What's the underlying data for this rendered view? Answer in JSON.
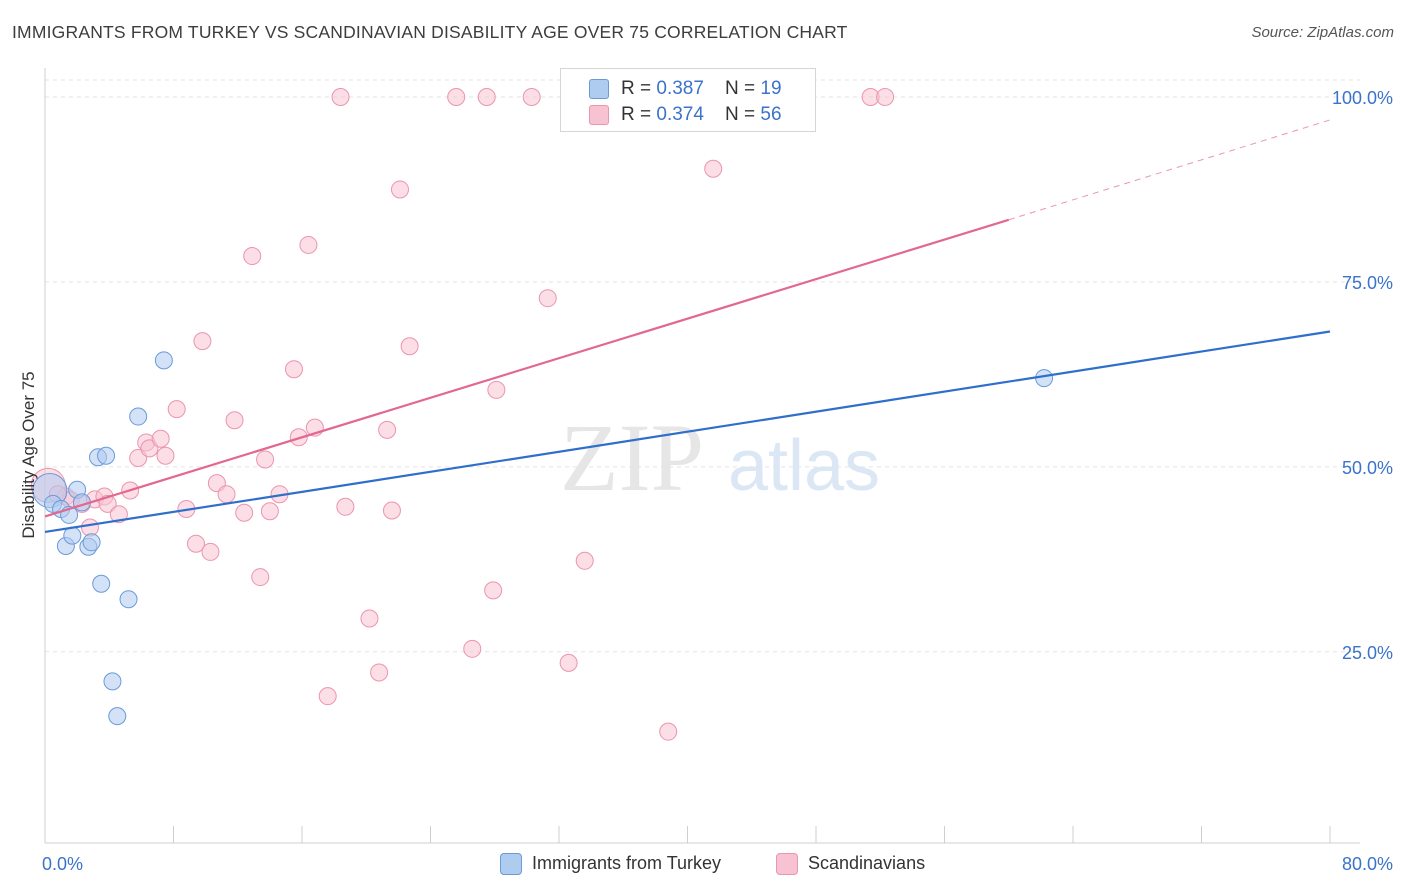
{
  "header": {
    "title": "IMMIGRANTS FROM TURKEY VS SCANDINAVIAN DISABILITY AGE OVER 75 CORRELATION CHART",
    "source": "Source: ZipAtlas.com"
  },
  "watermark": {
    "zip": "ZIP",
    "atlas": "atlas"
  },
  "legend": {
    "rows": [
      {
        "r_label": "R = ",
        "r_value": "0.387",
        "n_label": "N = ",
        "n_value": "19"
      },
      {
        "r_label": "R = ",
        "r_value": "0.374",
        "n_label": "N = ",
        "n_value": "56"
      }
    ]
  },
  "colors": {
    "blue_fill": "#aecbf0",
    "blue_stroke": "#6a9bd8",
    "blue_line": "#2f6fcc",
    "pink_fill": "#f7c2d2",
    "pink_stroke": "#ec94b0",
    "pink_line": "#e2688f",
    "axis_label": "#3a73c9"
  },
  "chart_data": {
    "type": "scatter",
    "title": "IMMIGRANTS FROM TURKEY VS SCANDINAVIAN DISABILITY AGE OVER 75 CORRELATION CHART",
    "xlabel": "",
    "ylabel": "Disability Age Over 75",
    "xlim": [
      0,
      80
    ],
    "ylim": [
      0,
      105
    ],
    "x_tick_labels": [
      "0.0%",
      "80.0%"
    ],
    "y_ticks": [
      25,
      50,
      75,
      100
    ],
    "y_tick_labels": [
      "25.0%",
      "50.0%",
      "75.0%",
      "100.0%"
    ],
    "series": [
      {
        "name": "Immigrants from Turkey",
        "points": [
          [
            0.3,
            46.8
          ],
          [
            0.5,
            45.0
          ],
          [
            1.0,
            44.3
          ],
          [
            1.3,
            39.3
          ],
          [
            1.5,
            43.5
          ],
          [
            1.7,
            40.7
          ],
          [
            2.0,
            46.9
          ],
          [
            2.3,
            45.2
          ],
          [
            2.7,
            39.2
          ],
          [
            2.9,
            39.8
          ],
          [
            3.3,
            51.3
          ],
          [
            3.5,
            34.2
          ],
          [
            3.8,
            51.5
          ],
          [
            4.2,
            21.0
          ],
          [
            4.5,
            16.3
          ],
          [
            5.2,
            32.1
          ],
          [
            5.8,
            56.8
          ],
          [
            7.4,
            64.4
          ],
          [
            62.2,
            62.0
          ]
        ],
        "trend": {
          "x": [
            0,
            80
          ],
          "y": [
            41.2,
            68.3
          ],
          "dashed_to": null
        }
      },
      {
        "name": "Scandinavians",
        "points": [
          [
            0.2,
            47.5
          ],
          [
            1.3,
            46.0
          ],
          [
            1.6,
            45.5
          ],
          [
            2.3,
            45.0
          ],
          [
            2.8,
            41.8
          ],
          [
            3.1,
            45.6
          ],
          [
            3.7,
            46.0
          ],
          [
            3.9,
            45.0
          ],
          [
            4.6,
            43.6
          ],
          [
            5.3,
            46.8
          ],
          [
            5.8,
            51.2
          ],
          [
            6.3,
            53.3
          ],
          [
            6.5,
            52.5
          ],
          [
            7.2,
            53.8
          ],
          [
            7.5,
            51.5
          ],
          [
            8.2,
            57.8
          ],
          [
            8.8,
            44.3
          ],
          [
            9.4,
            39.6
          ],
          [
            9.8,
            67.0
          ],
          [
            10.3,
            38.5
          ],
          [
            10.7,
            47.8
          ],
          [
            11.3,
            46.3
          ],
          [
            11.8,
            56.3
          ],
          [
            12.4,
            43.8
          ],
          [
            12.9,
            78.5
          ],
          [
            13.4,
            35.1
          ],
          [
            13.7,
            51.0
          ],
          [
            14.0,
            44.0
          ],
          [
            14.6,
            46.3
          ],
          [
            15.5,
            63.2
          ],
          [
            15.8,
            54.0
          ],
          [
            16.4,
            80.0
          ],
          [
            16.8,
            55.3
          ],
          [
            17.6,
            19.0
          ],
          [
            18.4,
            100.0
          ],
          [
            18.7,
            44.6
          ],
          [
            20.2,
            29.5
          ],
          [
            20.8,
            22.2
          ],
          [
            21.3,
            55.0
          ],
          [
            21.6,
            44.1
          ],
          [
            22.1,
            87.5
          ],
          [
            22.7,
            66.3
          ],
          [
            25.6,
            100.0
          ],
          [
            26.6,
            25.4
          ],
          [
            27.5,
            100.0
          ],
          [
            27.9,
            33.3
          ],
          [
            28.1,
            60.4
          ],
          [
            30.3,
            100.0
          ],
          [
            31.3,
            72.8
          ],
          [
            32.6,
            23.5
          ],
          [
            33.6,
            37.3
          ],
          [
            38.8,
            14.2
          ],
          [
            41.6,
            90.3
          ],
          [
            51.4,
            100.0
          ],
          [
            52.3,
            100.0
          ],
          [
            0.8,
            46.3
          ]
        ],
        "trend": {
          "x": [
            0,
            60.0
          ],
          "y": [
            43.3,
            83.4
          ],
          "dashed_to": {
            "x": 80,
            "y": 96.9
          }
        }
      }
    ]
  },
  "bottom_legend": {
    "items": [
      {
        "label": "Immigrants from Turkey"
      },
      {
        "label": "Scandinavians"
      }
    ]
  }
}
